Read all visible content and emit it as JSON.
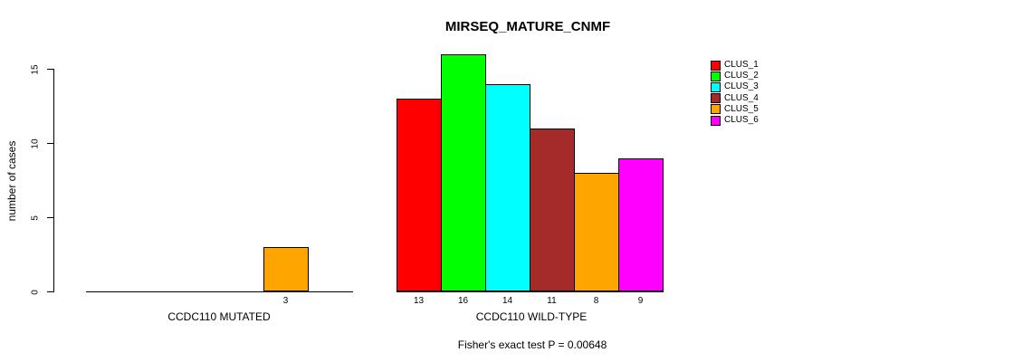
{
  "title": "MIRSEQ_MATURE_CNMF",
  "footnote": "Fisher's exact test P = 0.00648",
  "y_axis": {
    "label": "number of cases",
    "ticks": [
      0,
      5,
      10,
      15
    ]
  },
  "chart_data": {
    "type": "bar",
    "title": "MIRSEQ_MATURE_CNMF",
    "ylabel": "number of cases",
    "categories": [
      "CCDC110 MUTATED",
      "CCDC110 WILD-TYPE"
    ],
    "series": [
      {
        "name": "CLUS_1",
        "color": "#FF0000",
        "values": [
          0,
          13
        ]
      },
      {
        "name": "CLUS_2",
        "color": "#00FF00",
        "values": [
          0,
          16
        ]
      },
      {
        "name": "CLUS_3",
        "color": "#00FFFF",
        "values": [
          0,
          14
        ]
      },
      {
        "name": "CLUS_4",
        "color": "#A52A2A",
        "values": [
          0,
          11
        ]
      },
      {
        "name": "CLUS_5",
        "color": "#FFA500",
        "values": [
          3,
          8
        ]
      },
      {
        "name": "CLUS_6",
        "color": "#FF00FF",
        "values": [
          0,
          9
        ]
      }
    ],
    "ylim": [
      0,
      16
    ],
    "y_ticks": [
      0,
      5,
      10,
      15
    ],
    "bar_value_labels_shown": true,
    "annotation": "Fisher's exact test P = 0.00648",
    "legend_position": "right",
    "grid": false
  }
}
